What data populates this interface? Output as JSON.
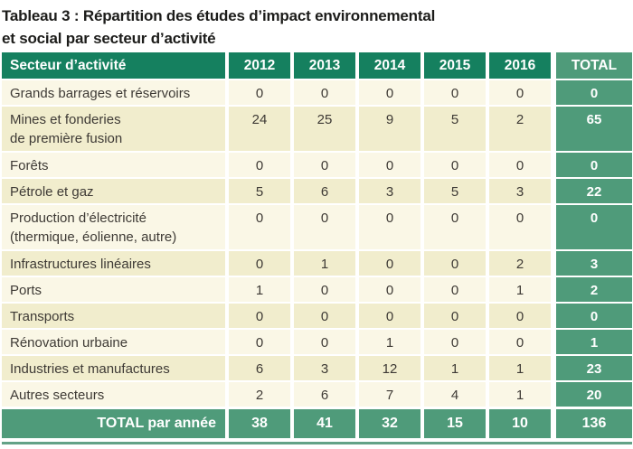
{
  "title": {
    "line1": "Tableau 3 : Répartition des études d’impact environnemental",
    "line2": "et social par secteur d’activité"
  },
  "table": {
    "header": {
      "sector_label": "Secteur d’activité",
      "years": [
        "2012",
        "2013",
        "2014",
        "2015",
        "2016"
      ],
      "total_label": "TOTAL"
    },
    "rows": [
      {
        "sector": "Grands barrages et réservoirs",
        "values": [
          0,
          0,
          0,
          0,
          0
        ],
        "total": 0,
        "tall": false
      },
      {
        "sector": "Mines et fonderies\nde première fusion",
        "values": [
          24,
          25,
          9,
          5,
          2
        ],
        "total": 65,
        "tall": true
      },
      {
        "sector": "Forêts",
        "values": [
          0,
          0,
          0,
          0,
          0
        ],
        "total": 0,
        "tall": false
      },
      {
        "sector": "Pétrole et gaz",
        "values": [
          5,
          6,
          3,
          5,
          3
        ],
        "total": 22,
        "tall": false
      },
      {
        "sector": "Production d’électricité\n(thermique, éolienne, autre)",
        "values": [
          0,
          0,
          0,
          0,
          0
        ],
        "total": 0,
        "tall": true
      },
      {
        "sector": "Infrastructures linéaires",
        "values": [
          0,
          1,
          0,
          0,
          2
        ],
        "total": 3,
        "tall": false
      },
      {
        "sector": "Ports",
        "values": [
          1,
          0,
          0,
          0,
          1
        ],
        "total": 2,
        "tall": false
      },
      {
        "sector": "Transports",
        "values": [
          0,
          0,
          0,
          0,
          0
        ],
        "total": 0,
        "tall": false
      },
      {
        "sector": "Rénovation urbaine",
        "values": [
          0,
          0,
          1,
          0,
          0
        ],
        "total": 1,
        "tall": false
      },
      {
        "sector": "Industries et manufactures",
        "values": [
          6,
          3,
          12,
          1,
          1
        ],
        "total": 23,
        "tall": false
      },
      {
        "sector": "Autres secteurs",
        "values": [
          2,
          6,
          7,
          4,
          1
        ],
        "total": 20,
        "tall": false
      }
    ],
    "footer": {
      "label": "TOTAL par année",
      "values": [
        38,
        41,
        32,
        15,
        10
      ],
      "total": 136
    }
  },
  "colors": {
    "header_green": "#15805f",
    "total_header_green": "#57a182",
    "total_column_green": "#4f9b7a",
    "row_light_cream": "#faf7e6",
    "row_dark_cream": "#f1edcd",
    "bottom_rule_green": "#63a287",
    "body_text": "#3e3a35",
    "title_text": "#1c1c1a",
    "divider_white": "#ffffff"
  }
}
